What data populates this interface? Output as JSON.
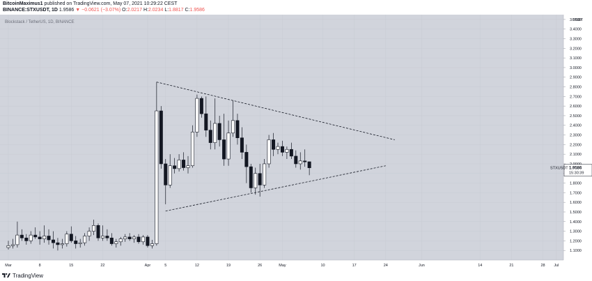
{
  "header": {
    "author": "BitcoinMaximus1",
    "published_text": " published on TradingView.com, May 07, 2021 10:29:22 CEST",
    "symbol": "BINANCE:STXUSDT, 1D",
    "change_value": "1.9586",
    "change_delta": "−0.0621 (−3.07%)",
    "o_label": "O:",
    "o_value": "2.0217",
    "h_label": "H:",
    "h_value": "2.0234",
    "l_label": "L:",
    "l_value": "1.8817",
    "c_label": "C:",
    "c_value": "1.9586"
  },
  "footer": {
    "brand": "TradingView"
  },
  "colors": {
    "background": "#d1d4dc",
    "candle_up": "#ffffff",
    "candle_down": "#131722",
    "wick": "#131722",
    "trendline": "#131722",
    "price_tag_bg": "#ffffff"
  },
  "chart_data": {
    "type": "candlestick",
    "watermark": "Blockstack / TetherUS, 1D, BINANCE",
    "currency": "USDT",
    "last_price": "1.9586",
    "countdown": "15:30:39",
    "ticker": "STXUSDT",
    "y_ticks": [
      "1.1000",
      "1.2000",
      "1.3000",
      "1.4000",
      "1.5000",
      "1.6000",
      "1.7000",
      "1.8000",
      "1.9000",
      "2.0000",
      "2.1000",
      "2.2000",
      "2.3000",
      "2.4000",
      "2.5000",
      "2.6000",
      "2.7000",
      "2.8000",
      "2.9000",
      "3.0000",
      "3.1000",
      "3.2000",
      "3.3000",
      "3.4000",
      "3.5000"
    ],
    "y_range": [
      1.0,
      3.55
    ],
    "x_ticks": [
      {
        "label": "Mar",
        "day": 0
      },
      {
        "label": "8",
        "day": 7
      },
      {
        "label": "15",
        "day": 14
      },
      {
        "label": "22",
        "day": 21
      },
      {
        "label": "Apr",
        "day": 31
      },
      {
        "label": "5",
        "day": 35
      },
      {
        "label": "12",
        "day": 42
      },
      {
        "label": "19",
        "day": 49
      },
      {
        "label": "26",
        "day": 56
      },
      {
        "label": "May",
        "day": 61
      },
      {
        "label": "10",
        "day": 70
      },
      {
        "label": "17",
        "day": 77
      },
      {
        "label": "24",
        "day": 84
      },
      {
        "label": "Jun",
        "day": 92
      },
      {
        "label": "14",
        "day": 105
      },
      {
        "label": "21",
        "day": 112
      },
      {
        "label": "28",
        "day": 119
      },
      {
        "label": "Jul",
        "day": 122
      }
    ],
    "candles": [
      {
        "date": "2021-03-01",
        "o": 1.13,
        "h": 1.2,
        "l": 1.11,
        "c": 1.15
      },
      {
        "date": "2021-03-02",
        "o": 1.15,
        "h": 1.22,
        "l": 1.12,
        "c": 1.16
      },
      {
        "date": "2021-03-03",
        "o": 1.16,
        "h": 1.4,
        "l": 1.13,
        "c": 1.26
      },
      {
        "date": "2021-03-04",
        "o": 1.26,
        "h": 1.32,
        "l": 1.2,
        "c": 1.23
      },
      {
        "date": "2021-03-05",
        "o": 1.23,
        "h": 1.27,
        "l": 1.16,
        "c": 1.2
      },
      {
        "date": "2021-03-06",
        "o": 1.2,
        "h": 1.3,
        "l": 1.17,
        "c": 1.26
      },
      {
        "date": "2021-03-07",
        "o": 1.26,
        "h": 1.34,
        "l": 1.22,
        "c": 1.24
      },
      {
        "date": "2021-03-08",
        "o": 1.24,
        "h": 1.3,
        "l": 1.16,
        "c": 1.22
      },
      {
        "date": "2021-03-09",
        "o": 1.22,
        "h": 1.36,
        "l": 1.18,
        "c": 1.25
      },
      {
        "date": "2021-03-10",
        "o": 1.25,
        "h": 1.32,
        "l": 1.16,
        "c": 1.21
      },
      {
        "date": "2021-03-11",
        "o": 1.21,
        "h": 1.3,
        "l": 1.12,
        "c": 1.18
      },
      {
        "date": "2021-03-12",
        "o": 1.18,
        "h": 1.23,
        "l": 1.1,
        "c": 1.16
      },
      {
        "date": "2021-03-13",
        "o": 1.16,
        "h": 1.22,
        "l": 1.12,
        "c": 1.17
      },
      {
        "date": "2021-03-14",
        "o": 1.17,
        "h": 1.3,
        "l": 1.14,
        "c": 1.27
      },
      {
        "date": "2021-03-15",
        "o": 1.27,
        "h": 1.35,
        "l": 1.18,
        "c": 1.2
      },
      {
        "date": "2021-03-16",
        "o": 1.2,
        "h": 1.25,
        "l": 1.12,
        "c": 1.17
      },
      {
        "date": "2021-03-17",
        "o": 1.17,
        "h": 1.22,
        "l": 1.13,
        "c": 1.18
      },
      {
        "date": "2021-03-18",
        "o": 1.18,
        "h": 1.28,
        "l": 1.15,
        "c": 1.25
      },
      {
        "date": "2021-03-19",
        "o": 1.25,
        "h": 1.34,
        "l": 1.2,
        "c": 1.3
      },
      {
        "date": "2021-03-20",
        "o": 1.3,
        "h": 1.42,
        "l": 1.26,
        "c": 1.36
      },
      {
        "date": "2021-03-21",
        "o": 1.36,
        "h": 1.38,
        "l": 1.2,
        "c": 1.23
      },
      {
        "date": "2021-03-22",
        "o": 1.23,
        "h": 1.36,
        "l": 1.2,
        "c": 1.25
      },
      {
        "date": "2021-03-23",
        "o": 1.25,
        "h": 1.32,
        "l": 1.2,
        "c": 1.23
      },
      {
        "date": "2021-03-24",
        "o": 1.23,
        "h": 1.28,
        "l": 1.15,
        "c": 1.17
      },
      {
        "date": "2021-03-25",
        "o": 1.17,
        "h": 1.22,
        "l": 1.13,
        "c": 1.19
      },
      {
        "date": "2021-03-26",
        "o": 1.19,
        "h": 1.24,
        "l": 1.15,
        "c": 1.22
      },
      {
        "date": "2021-03-27",
        "o": 1.22,
        "h": 1.27,
        "l": 1.19,
        "c": 1.24
      },
      {
        "date": "2021-03-28",
        "o": 1.24,
        "h": 1.28,
        "l": 1.2,
        "c": 1.22
      },
      {
        "date": "2021-03-29",
        "o": 1.22,
        "h": 1.26,
        "l": 1.18,
        "c": 1.24
      },
      {
        "date": "2021-03-30",
        "o": 1.24,
        "h": 1.27,
        "l": 1.17,
        "c": 1.19
      },
      {
        "date": "2021-03-31",
        "o": 1.19,
        "h": 1.26,
        "l": 1.16,
        "c": 1.24
      },
      {
        "date": "2021-04-01",
        "o": 1.24,
        "h": 1.26,
        "l": 1.13,
        "c": 1.15
      },
      {
        "date": "2021-04-02",
        "o": 1.15,
        "h": 1.21,
        "l": 1.12,
        "c": 1.17
      },
      {
        "date": "2021-04-03",
        "o": 1.17,
        "h": 2.85,
        "l": 1.15,
        "c": 2.55
      },
      {
        "date": "2021-04-04",
        "o": 2.55,
        "h": 2.6,
        "l": 1.95,
        "c": 2.0
      },
      {
        "date": "2021-04-05",
        "o": 2.0,
        "h": 2.05,
        "l": 1.58,
        "c": 1.78
      },
      {
        "date": "2021-04-06",
        "o": 1.78,
        "h": 2.1,
        "l": 1.75,
        "c": 1.98
      },
      {
        "date": "2021-04-07",
        "o": 1.98,
        "h": 2.06,
        "l": 1.9,
        "c": 1.95
      },
      {
        "date": "2021-04-08",
        "o": 1.95,
        "h": 2.1,
        "l": 1.92,
        "c": 2.04
      },
      {
        "date": "2021-04-09",
        "o": 2.04,
        "h": 2.12,
        "l": 1.93,
        "c": 1.96
      },
      {
        "date": "2021-04-10",
        "o": 1.96,
        "h": 2.08,
        "l": 1.9,
        "c": 1.98
      },
      {
        "date": "2021-04-11",
        "o": 1.98,
        "h": 2.4,
        "l": 1.96,
        "c": 2.33
      },
      {
        "date": "2021-04-12",
        "o": 2.33,
        "h": 2.72,
        "l": 2.28,
        "c": 2.68
      },
      {
        "date": "2021-04-13",
        "o": 2.68,
        "h": 2.7,
        "l": 2.48,
        "c": 2.52
      },
      {
        "date": "2021-04-14",
        "o": 2.52,
        "h": 2.7,
        "l": 2.28,
        "c": 2.35
      },
      {
        "date": "2021-04-15",
        "o": 2.35,
        "h": 2.45,
        "l": 2.15,
        "c": 2.22
      },
      {
        "date": "2021-04-16",
        "o": 2.22,
        "h": 2.68,
        "l": 2.15,
        "c": 2.42
      },
      {
        "date": "2021-04-17",
        "o": 2.42,
        "h": 2.5,
        "l": 2.18,
        "c": 2.25
      },
      {
        "date": "2021-04-18",
        "o": 2.25,
        "h": 2.52,
        "l": 1.98,
        "c": 2.05
      },
      {
        "date": "2021-04-19",
        "o": 2.05,
        "h": 2.45,
        "l": 1.98,
        "c": 2.32
      },
      {
        "date": "2021-04-20",
        "o": 2.32,
        "h": 2.66,
        "l": 2.28,
        "c": 2.45
      },
      {
        "date": "2021-04-21",
        "o": 2.45,
        "h": 2.52,
        "l": 2.2,
        "c": 2.27
      },
      {
        "date": "2021-04-22",
        "o": 2.27,
        "h": 2.38,
        "l": 2.05,
        "c": 2.12
      },
      {
        "date": "2021-04-23",
        "o": 2.12,
        "h": 2.2,
        "l": 1.8,
        "c": 1.97
      },
      {
        "date": "2021-04-24",
        "o": 1.97,
        "h": 2.0,
        "l": 1.7,
        "c": 1.75
      },
      {
        "date": "2021-04-25",
        "o": 1.75,
        "h": 1.96,
        "l": 1.68,
        "c": 1.9
      },
      {
        "date": "2021-04-26",
        "o": 1.9,
        "h": 2.0,
        "l": 1.66,
        "c": 1.78
      },
      {
        "date": "2021-04-27",
        "o": 1.78,
        "h": 2.05,
        "l": 1.75,
        "c": 2.0
      },
      {
        "date": "2021-04-28",
        "o": 2.0,
        "h": 2.3,
        "l": 1.96,
        "c": 2.25
      },
      {
        "date": "2021-04-29",
        "o": 2.25,
        "h": 2.32,
        "l": 2.08,
        "c": 2.15
      },
      {
        "date": "2021-04-30",
        "o": 2.15,
        "h": 2.22,
        "l": 2.1,
        "c": 2.18
      },
      {
        "date": "2021-05-01",
        "o": 2.18,
        "h": 2.24,
        "l": 2.08,
        "c": 2.12
      },
      {
        "date": "2021-05-02",
        "o": 2.12,
        "h": 2.18,
        "l": 2.05,
        "c": 2.15
      },
      {
        "date": "2021-05-03",
        "o": 2.15,
        "h": 2.22,
        "l": 2.05,
        "c": 2.08
      },
      {
        "date": "2021-05-04",
        "o": 2.08,
        "h": 2.14,
        "l": 1.96,
        "c": 2.0
      },
      {
        "date": "2021-05-05",
        "o": 2.0,
        "h": 2.12,
        "l": 1.94,
        "c": 2.03
      },
      {
        "date": "2021-05-06",
        "o": 2.03,
        "h": 2.15,
        "l": 1.97,
        "c": 2.02
      },
      {
        "date": "2021-05-07",
        "o": 2.0217,
        "h": 2.0234,
        "l": 1.8817,
        "c": 1.9586
      }
    ],
    "trendlines": [
      {
        "name": "upper",
        "from": {
          "day": 33,
          "price": 2.85
        },
        "to": {
          "day": 86,
          "price": 2.25
        }
      },
      {
        "name": "lower",
        "from": {
          "day": 35,
          "price": 1.51
        },
        "to": {
          "day": 84,
          "price": 1.98
        }
      }
    ]
  }
}
